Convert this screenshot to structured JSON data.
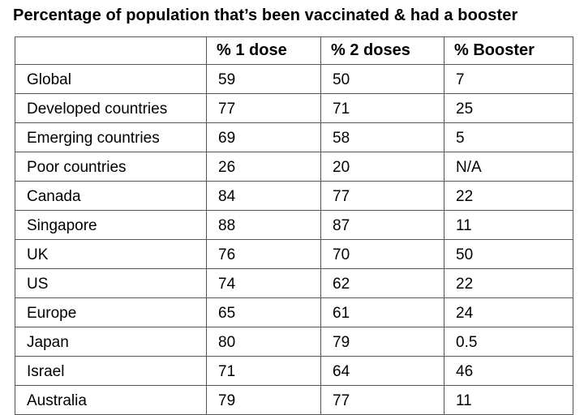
{
  "chart_data": {
    "type": "table",
    "title": "Percentage of population that’s been vaccinated & had a booster",
    "columns": [
      "",
      "% 1 dose",
      "% 2 doses",
      "% Booster"
    ],
    "rows": [
      [
        "Global",
        "59",
        "50",
        "7"
      ],
      [
        "Developed countries",
        "77",
        "71",
        "25"
      ],
      [
        "Emerging countries",
        "69",
        "58",
        "5"
      ],
      [
        "Poor countries",
        "26",
        "20",
        "N/A"
      ],
      [
        "Canada",
        "84",
        "77",
        "22"
      ],
      [
        "Singapore",
        "88",
        "87",
        "11"
      ],
      [
        "UK",
        "76",
        "70",
        "50"
      ],
      [
        "US",
        "74",
        "62",
        "22"
      ],
      [
        "Europe",
        "65",
        "61",
        "24"
      ],
      [
        "Japan",
        "80",
        "79",
        "0.5"
      ],
      [
        "Israel",
        "71",
        "64",
        "46"
      ],
      [
        "Australia",
        "79",
        "77",
        "11"
      ]
    ]
  }
}
